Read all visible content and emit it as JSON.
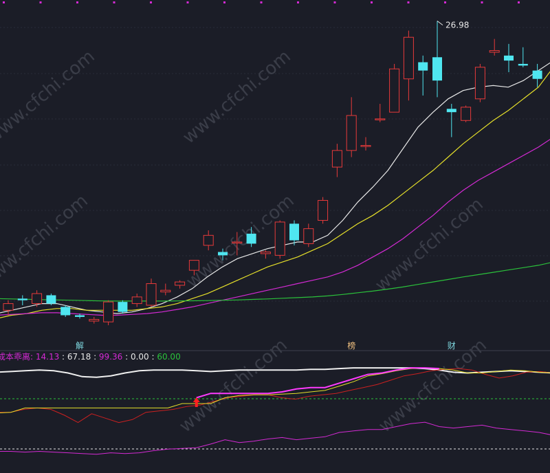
{
  "watermark": "www.cfchi.com",
  "chart_data": [
    {
      "type": "candlestick",
      "name_hint": "main",
      "ylim": [
        8.0,
        27.0
      ],
      "price_label": "26.98",
      "event_markers": [
        {
          "index": 5,
          "text": "解"
        },
        {
          "index": 24,
          "text": "榜"
        },
        {
          "index": 31,
          "text": "财"
        }
      ],
      "candles": [
        {
          "o": 9.6,
          "h": 10.2,
          "l": 9.3,
          "c": 10.0
        },
        {
          "o": 10.3,
          "h": 10.5,
          "l": 9.9,
          "c": 10.2
        },
        {
          "o": 10.0,
          "h": 10.8,
          "l": 9.8,
          "c": 10.6
        },
        {
          "o": 10.5,
          "h": 10.6,
          "l": 9.9,
          "c": 10.0
        },
        {
          "o": 9.8,
          "h": 9.9,
          "l": 9.2,
          "c": 9.3
        },
        {
          "o": 9.3,
          "h": 9.4,
          "l": 9.1,
          "c": 9.2
        },
        {
          "o": 8.95,
          "h": 9.2,
          "l": 8.8,
          "c": 9.05
        },
        {
          "o": 8.9,
          "h": 10.2,
          "l": 8.7,
          "c": 10.1
        },
        {
          "o": 10.1,
          "h": 10.2,
          "l": 9.4,
          "c": 9.5
        },
        {
          "o": 10.0,
          "h": 10.6,
          "l": 9.8,
          "c": 10.4
        },
        {
          "o": 9.9,
          "h": 11.5,
          "l": 9.8,
          "c": 11.2
        },
        {
          "o": 10.7,
          "h": 11.2,
          "l": 10.5,
          "c": 10.8
        },
        {
          "o": 11.1,
          "h": 11.4,
          "l": 10.9,
          "c": 11.3
        },
        {
          "o": 12.0,
          "h": 12.6,
          "l": 11.7,
          "c": 12.6
        },
        {
          "o": 13.5,
          "h": 14.4,
          "l": 13.2,
          "c": 14.1
        },
        {
          "o": 13.1,
          "h": 13.3,
          "l": 12.6,
          "c": 12.9
        },
        {
          "o": 13.7,
          "h": 14.3,
          "l": 12.9,
          "c": 13.7
        },
        {
          "o": 14.2,
          "h": 14.6,
          "l": 13.4,
          "c": 13.6
        },
        {
          "o": 13.0,
          "h": 13.2,
          "l": 12.7,
          "c": 13.1
        },
        {
          "o": 12.9,
          "h": 15.0,
          "l": 12.7,
          "c": 14.9
        },
        {
          "o": 14.8,
          "h": 15.0,
          "l": 13.5,
          "c": 13.8
        },
        {
          "o": 13.6,
          "h": 14.8,
          "l": 13.4,
          "c": 14.5
        },
        {
          "o": 15.0,
          "h": 16.4,
          "l": 14.8,
          "c": 16.2
        },
        {
          "o": 18.2,
          "h": 19.6,
          "l": 17.6,
          "c": 19.2
        },
        {
          "o": 19.2,
          "h": 22.4,
          "l": 18.8,
          "c": 21.3
        },
        {
          "o": 19.5,
          "h": 20.0,
          "l": 19.2,
          "c": 19.5
        },
        {
          "o": 21.1,
          "h": 22.0,
          "l": 20.9,
          "c": 21.1
        },
        {
          "o": 21.5,
          "h": 24.4,
          "l": 21.5,
          "c": 24.1
        },
        {
          "o": 23.5,
          "h": 26.4,
          "l": 22.2,
          "c": 26.0
        },
        {
          "o": 24.5,
          "h": 24.9,
          "l": 22.5,
          "c": 24.0
        },
        {
          "o": 24.8,
          "h": 26.98,
          "l": 22.4,
          "c": 23.4
        },
        {
          "o": 21.7,
          "h": 22.0,
          "l": 20.0,
          "c": 21.5
        },
        {
          "o": 21.0,
          "h": 21.9,
          "l": 20.9,
          "c": 21.8
        },
        {
          "o": 22.3,
          "h": 24.4,
          "l": 22.1,
          "c": 24.2
        },
        {
          "o": 25.1,
          "h": 25.9,
          "l": 24.9,
          "c": 25.2
        },
        {
          "o": 24.9,
          "h": 25.6,
          "l": 23.9,
          "c": 24.6
        },
        {
          "o": 24.4,
          "h": 25.4,
          "l": 24.2,
          "c": 24.3
        },
        {
          "o": 24.0,
          "h": 24.4,
          "l": 23.0,
          "c": 23.5
        }
      ],
      "ma": [
        {
          "color": "#e8e8e8",
          "values": [
            9.4,
            9.6,
            9.8,
            10.0,
            10.0,
            9.8,
            9.6,
            9.5,
            9.4,
            9.5,
            9.7,
            10.0,
            10.4,
            10.9,
            11.6,
            12.2,
            12.7,
            13.0,
            13.3,
            13.5,
            13.7,
            13.7,
            14.1,
            15.0,
            16.1,
            17.0,
            18.0,
            19.3,
            20.6,
            21.5,
            22.3,
            22.8,
            23.0,
            23.1,
            23.0,
            23.4,
            24.0,
            24.6
          ]
        },
        {
          "color": "#e6e02a",
          "values": [
            9.1,
            9.3,
            9.4,
            9.6,
            9.7,
            9.7,
            9.6,
            9.6,
            9.6,
            9.6,
            9.7,
            9.8,
            10.0,
            10.3,
            10.6,
            11.0,
            11.4,
            11.8,
            12.2,
            12.5,
            12.8,
            13.2,
            13.6,
            14.2,
            14.8,
            15.3,
            15.9,
            16.6,
            17.3,
            18.0,
            18.8,
            19.6,
            20.3,
            21.0,
            21.6,
            22.3,
            23.0,
            24.2
          ]
        },
        {
          "color": "#d42ad4",
          "values": [
            9.3,
            9.35,
            9.4,
            9.45,
            9.45,
            9.4,
            9.35,
            9.3,
            9.3,
            9.35,
            9.4,
            9.5,
            9.65,
            9.8,
            10.0,
            10.2,
            10.4,
            10.6,
            10.8,
            11.0,
            11.2,
            11.4,
            11.6,
            11.9,
            12.3,
            12.8,
            13.3,
            13.9,
            14.6,
            15.3,
            16.1,
            16.8,
            17.4,
            17.9,
            18.4,
            18.9,
            19.4,
            20.0
          ]
        },
        {
          "color": "#2bc23b",
          "values": [
            10.3,
            10.28,
            10.26,
            10.24,
            10.22,
            10.2,
            10.18,
            10.16,
            10.15,
            10.15,
            10.15,
            10.15,
            10.16,
            10.17,
            10.18,
            10.2,
            10.22,
            10.25,
            10.28,
            10.32,
            10.36,
            10.4,
            10.46,
            10.55,
            10.65,
            10.75,
            10.87,
            11.0,
            11.15,
            11.3,
            11.45,
            11.6,
            11.74,
            11.88,
            12.02,
            12.16,
            12.3,
            12.5
          ]
        }
      ]
    },
    {
      "type": "line",
      "name_hint": "indicator",
      "ylim": [
        0,
        100
      ],
      "legend": [
        {
          "text": "成本乖离: ",
          "color": "#d42ad4"
        },
        {
          "text": "14.13",
          "color": "#d42ad4"
        },
        {
          "text": " : ",
          "color": "#e8e8e8"
        },
        {
          "text": "67.18",
          "color": "#e8e8e8"
        },
        {
          "text": " : ",
          "color": "#e8e8e8"
        },
        {
          "text": "99.36",
          "color": "#d42ad4"
        },
        {
          "text": " : ",
          "color": "#e8e8e8"
        },
        {
          "text": "0.00",
          "color": "#e8e8e8"
        },
        {
          "text": " : ",
          "color": "#e8e8e8"
        },
        {
          "text": "60.00",
          "color": "#2bc23b"
        }
      ],
      "ref_lines": [
        {
          "value": 60,
          "color": "#2bc23b"
        },
        {
          "value": 0,
          "color": "#e8e8e8"
        }
      ],
      "series": [
        {
          "color": "#f0f0f0",
          "width": 2,
          "values": [
            93,
            94,
            95,
            96,
            95,
            92,
            87,
            86,
            88,
            92,
            95,
            96,
            96,
            96,
            95,
            94,
            95,
            96,
            96,
            96,
            96,
            96,
            97,
            97,
            98,
            99,
            99,
            99,
            99,
            99,
            98,
            96,
            93,
            92,
            93,
            94,
            95,
            94,
            93,
            92
          ]
        },
        {
          "color": "#cc2020",
          "width": 1,
          "values": [
            38,
            38,
            42,
            44,
            42,
            34,
            24,
            36,
            30,
            24,
            28,
            38,
            40,
            42,
            46,
            48,
            53,
            58,
            60,
            62,
            62,
            58,
            56,
            60,
            62,
            64,
            68,
            72,
            76,
            82,
            88,
            91,
            95,
            97,
            98,
            96,
            90,
            85,
            88,
            93,
            94,
            92
          ]
        },
        {
          "color": "#e6e02a",
          "width": 1,
          "values": [
            37,
            38,
            44,
            44,
            44,
            44,
            44,
            44,
            44,
            44,
            44,
            44,
            44,
            50,
            50,
            50,
            58,
            61,
            62,
            62,
            63,
            64,
            66,
            68,
            74,
            80,
            88,
            91,
            95,
            98,
            99,
            98,
            96,
            92,
            92,
            94,
            96,
            95,
            93,
            92
          ]
        },
        {
          "color": "#ff3bff",
          "width": 2,
          "values": [
            null,
            null,
            null,
            null,
            null,
            null,
            null,
            null,
            null,
            null,
            null,
            null,
            null,
            null,
            58,
            64,
            64,
            64,
            64,
            64,
            66,
            70,
            72,
            72,
            78,
            84,
            90,
            92,
            96,
            99,
            99,
            98,
            null,
            null,
            null,
            null,
            null,
            null,
            null,
            null
          ]
        },
        {
          "color": "#d42ad4",
          "width": 1,
          "values": [
            8,
            8,
            7,
            8,
            7,
            6,
            5,
            4,
            6,
            5,
            6,
            9,
            11,
            12,
            13,
            18,
            24,
            20,
            22,
            25,
            27,
            24,
            26,
            28,
            34,
            36,
            38,
            38,
            42,
            46,
            48,
            42,
            40,
            42,
            44,
            40,
            38,
            36,
            34,
            30
          ]
        }
      ],
      "arrow_index": 14
    }
  ]
}
